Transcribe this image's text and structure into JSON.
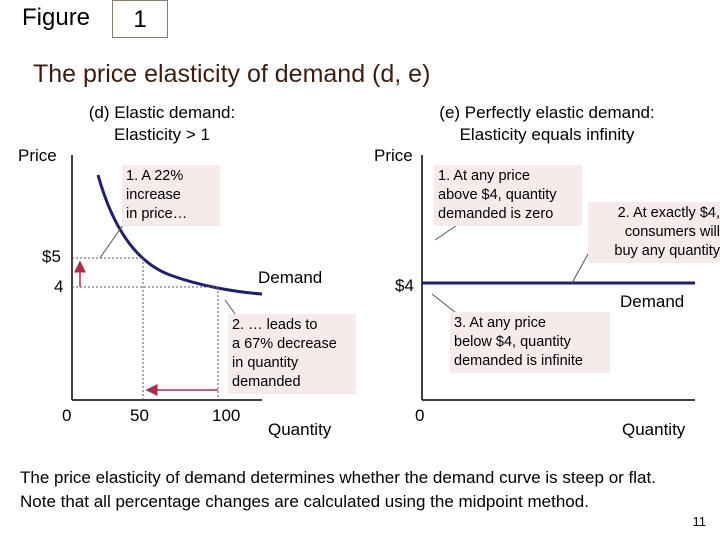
{
  "header": {
    "figure_label": "Figure",
    "figure_number": "1",
    "title": "The price elasticity of demand (d, e)"
  },
  "panel_d": {
    "heading_line1": "(d) Elastic demand:",
    "heading_line2": "Elasticity > 1",
    "y_axis_label": "Price",
    "x_axis_label": "Quantity",
    "price_high": "$5",
    "price_low": "4",
    "qty_zero": "0",
    "qty_low": "50",
    "qty_high": "100",
    "curve_label": "Demand",
    "note1_lines": [
      "1.  A 22%",
      "increase",
      "in price…"
    ],
    "note2_lines": [
      "2. … leads to",
      "a 67% decrease",
      "in quantity",
      "demanded"
    ]
  },
  "panel_e": {
    "heading_line1": "(e) Perfectly elastic demand:",
    "heading_line2": "Elasticity equals infinity",
    "y_axis_label": "Price",
    "x_axis_label": "Quantity",
    "price_level": "$4",
    "qty_zero": "0",
    "curve_label": "Demand",
    "note1_lines": [
      "1. At any price",
      "above $4, quantity",
      "demanded is zero"
    ],
    "note2_lines": [
      "2. At exactly $4,",
      "consumers will",
      "buy any quantity"
    ],
    "note3_lines": [
      "3. At any price",
      "below $4, quantity",
      "demanded is infinite"
    ]
  },
  "footer": {
    "line1": "The price elasticity of demand determines whether the demand curve is steep or flat.",
    "line2": "Note that all percentage changes are calculated using the midpoint method."
  },
  "page_number": "11",
  "colors": {
    "curve": "#1f1f6e",
    "arrow": "#b22a4a",
    "note_bg": "#f6eaea",
    "title": "#3a1f10"
  }
}
